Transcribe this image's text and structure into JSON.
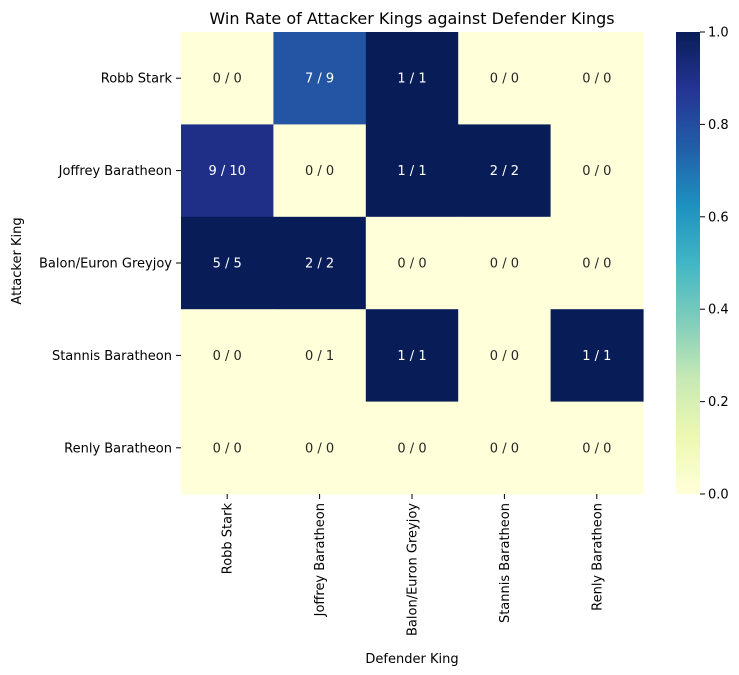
{
  "chart_data": {
    "type": "heatmap",
    "title": "Win Rate of Attacker Kings against Defender Kings",
    "xlabel": "Defender King",
    "ylabel": "Attacker King",
    "rows": [
      "Robb Stark",
      "Joffrey Baratheon",
      "Balon/Euron Greyjoy",
      "Stannis Baratheon",
      "Renly Baratheon"
    ],
    "columns": [
      "Robb Stark",
      "Joffrey Baratheon",
      "Balon/Euron Greyjoy",
      "Stannis Baratheon",
      "Renly Baratheon"
    ],
    "wins": [
      [
        0,
        7,
        1,
        0,
        0
      ],
      [
        9,
        0,
        1,
        2,
        0
      ],
      [
        5,
        2,
        0,
        0,
        0
      ],
      [
        0,
        0,
        1,
        0,
        1
      ],
      [
        0,
        0,
        0,
        0,
        0
      ]
    ],
    "battles": [
      [
        0,
        9,
        1,
        0,
        0
      ],
      [
        10,
        0,
        1,
        2,
        0
      ],
      [
        5,
        2,
        0,
        0,
        0
      ],
      [
        0,
        1,
        1,
        0,
        1
      ],
      [
        0,
        0,
        0,
        0,
        0
      ]
    ],
    "values": [
      [
        0,
        0.778,
        1,
        0,
        0
      ],
      [
        0.9,
        0,
        1,
        1,
        0
      ],
      [
        1,
        1,
        0,
        0,
        0
      ],
      [
        0,
        0,
        1,
        0,
        1
      ],
      [
        0,
        0,
        0,
        0,
        0
      ]
    ],
    "colorbar": {
      "colormap": "YlGnBu",
      "range": [
        0,
        1
      ],
      "ticks": [
        "0.0",
        "0.2",
        "0.4",
        "0.6",
        "0.8",
        "1.0"
      ]
    }
  }
}
